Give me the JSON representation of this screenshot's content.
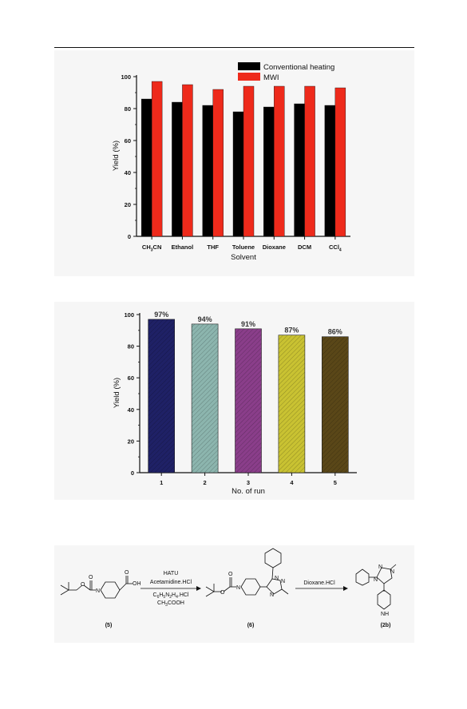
{
  "chart_data": [
    {
      "type": "bar",
      "categories": [
        "CH3CN",
        "Ethanol",
        "THF",
        "Toluene",
        "Dioxane",
        "DCM",
        "CCl4"
      ],
      "series": [
        {
          "name": "Conventional heating",
          "values": [
            86,
            84,
            82,
            78,
            81,
            83,
            82
          ],
          "color": "#000000"
        },
        {
          "name": "MWI",
          "values": [
            97,
            95,
            92,
            94,
            94,
            94,
            93
          ],
          "color": "#ee2a1b"
        }
      ],
      "xlabel": "Solvent",
      "ylabel": "Yield (%)",
      "ylim": [
        0,
        100
      ],
      "yticks": [
        "0",
        "20",
        "40",
        "60",
        "80",
        "100"
      ],
      "grid": false,
      "legend": "top-right"
    },
    {
      "type": "bar",
      "categories": [
        "1",
        "2",
        "3",
        "4",
        "5"
      ],
      "values": [
        97,
        94,
        91,
        87,
        86
      ],
      "data_labels": [
        "97%",
        "94%",
        "91%",
        "87%",
        "86%"
      ],
      "colors": [
        "#1f2166",
        "#8cb5ae",
        "#8a3e8a",
        "#c9c232",
        "#5a4718"
      ],
      "xlabel": "No. of run",
      "ylabel": "Yield (%)",
      "ylim": [
        0,
        100
      ],
      "yticks": [
        "0",
        "20",
        "40",
        "60",
        "80",
        "100"
      ],
      "grid": false
    }
  ],
  "scheme": {
    "reagents_top": [
      "HATU",
      "Acetamidine.HCl"
    ],
    "reagents_bottom_1": "C6H5N2H4.HCl",
    "reagents_bottom_2": "CH3COOH",
    "reagent_step2": "Dioxane.HCl",
    "acid_label": "OH",
    "carbonyl_o": "O",
    "n_label": "N",
    "nh_label": "NH",
    "compound_1": "(5)",
    "compound_2": "(6)",
    "compound_3": "(2b)"
  }
}
